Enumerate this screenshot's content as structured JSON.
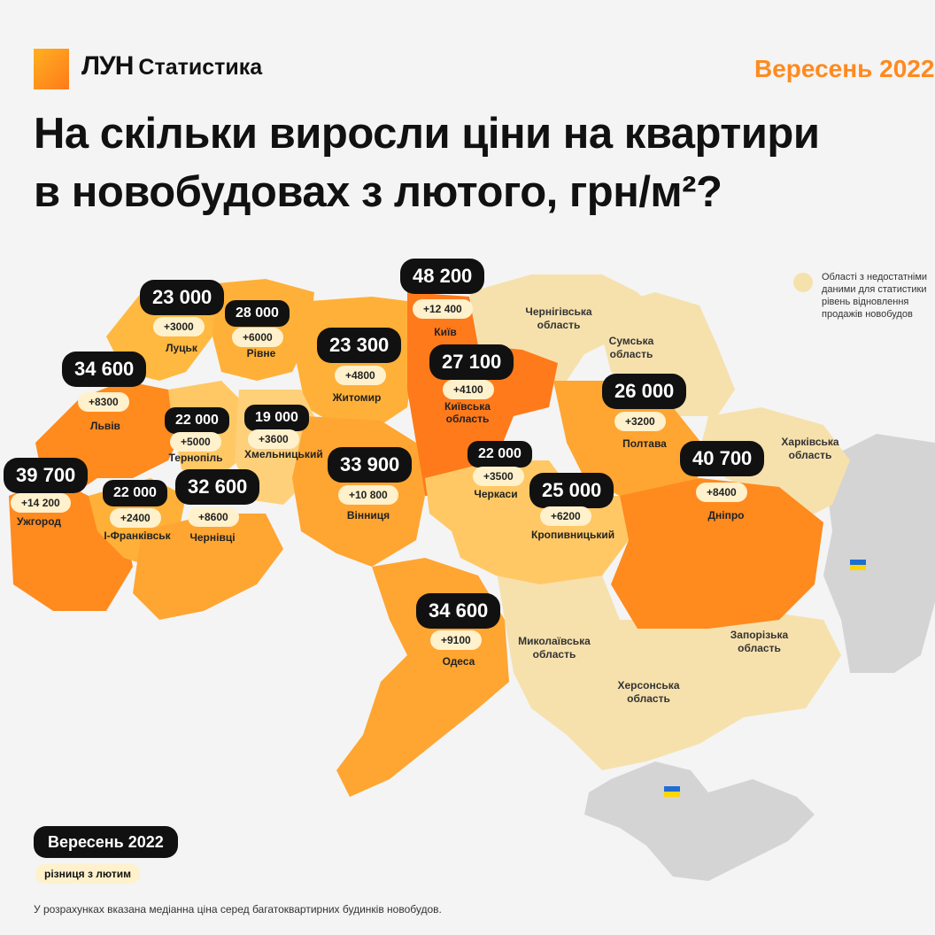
{
  "header": {
    "brand": "ЛУН",
    "brand_sub": "Статистика",
    "date": "Вересень 2022",
    "title_line1": "На скільки виросли ціни на квартири",
    "title_line2": "в новобудовах з лютого, грн/м²?"
  },
  "legend": {
    "insufficient_data": "Області з недостатніми даними для статистики рівень відновлення продажів новобудов",
    "period_label": "Вересень 2022",
    "diff_label": "різниця з лютим"
  },
  "footnote": "У розрахунках вказана медіанна ціна серед багатоквартирних будинків новобудов.",
  "cities": [
    {
      "name": "Луцьк",
      "price": "23 000",
      "diff": "+3000"
    },
    {
      "name": "Рівне",
      "price": "28 000",
      "diff": "+6000"
    },
    {
      "name": "Київ",
      "price": "48 200",
      "diff": "+12 400"
    },
    {
      "name": "Житомир",
      "price": "23 300",
      "diff": "+4800"
    },
    {
      "name": "Львів",
      "price": "34 600",
      "diff": "+8300"
    },
    {
      "name": "Київська область",
      "price": "27 100",
      "diff": "+4100"
    },
    {
      "name": "Тернопіль",
      "price": "22 000",
      "diff": "+5000"
    },
    {
      "name": "Хмельницький",
      "price": "19 000",
      "diff": "+3600"
    },
    {
      "name": "Полтава",
      "price": "26 000",
      "diff": "+3200"
    },
    {
      "name": "Ужгород",
      "price": "39 700",
      "diff": "+14 200"
    },
    {
      "name": "Вінниця",
      "price": "33 900",
      "diff": "+10 800"
    },
    {
      "name": "Черкаси",
      "price": "22 000",
      "diff": "+3500"
    },
    {
      "name": "Дніпро",
      "price": "40 700",
      "diff": "+8400"
    },
    {
      "name": "Чернівці",
      "price": "32 600",
      "diff": "+8600"
    },
    {
      "name": "І-Франківськ",
      "price": "22 000",
      "diff": "+2400"
    },
    {
      "name": "Кропивницький",
      "price": "25 000",
      "diff": "+6200"
    },
    {
      "name": "Одеса",
      "price": "34 600",
      "diff": "+9100"
    }
  ],
  "regions": {
    "chernihiv": "Чернігівська область",
    "sumy": "Сумська область",
    "kharkiv": "Харківська область",
    "mykolaiv": "Миколаївська область",
    "zaporizhzhia": "Запорізька область",
    "kherson": "Херсонська область"
  },
  "colors": {
    "accent": "#ff8a1e",
    "high": "#ff7a1a",
    "mid": "#ffa531",
    "low": "#ffc865",
    "no_data": "#f6e1ad",
    "occupied": "#d4d4d4",
    "pill": "#111111",
    "diff_bg": "#fff1cc"
  },
  "icons": [
    "ukraine-flag-icon"
  ]
}
